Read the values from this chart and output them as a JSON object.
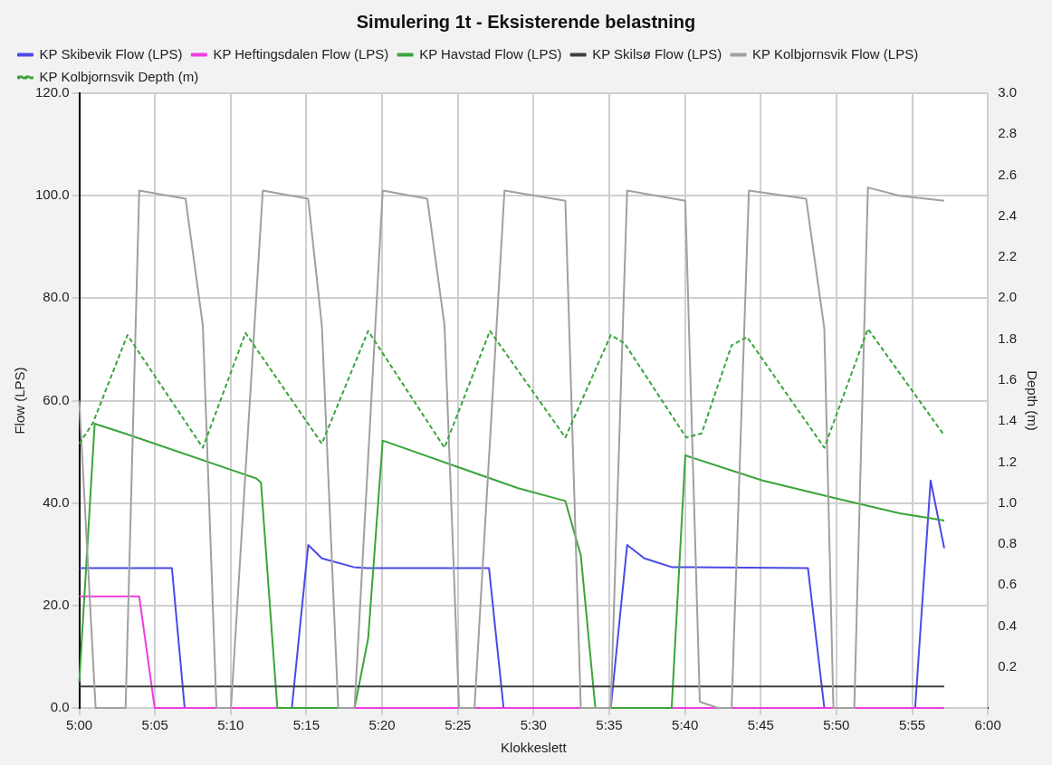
{
  "chart_data": {
    "type": "line",
    "title": "Simulering 1t - Eksisterende belastning",
    "xlabel": "Klokkeslett",
    "ylabel": "Flow (LPS)",
    "y2label": "Depth (m)",
    "xlim": [
      5,
      6
    ],
    "xticks": [
      {
        "value": 5,
        "label": "5:00"
      },
      {
        "value": 5.0833,
        "label": "5:05"
      },
      {
        "value": 5.1667,
        "label": "5:10"
      },
      {
        "value": 5.25,
        "label": "5:15"
      },
      {
        "value": 5.3333,
        "label": "5:20"
      },
      {
        "value": 5.4167,
        "label": "5:25"
      },
      {
        "value": 5.5,
        "label": "5:30"
      },
      {
        "value": 5.5833,
        "label": "5:35"
      },
      {
        "value": 5.6667,
        "label": "5:40"
      },
      {
        "value": 5.75,
        "label": "5:45"
      },
      {
        "value": 5.8333,
        "label": "5:50"
      },
      {
        "value": 5.9167,
        "label": "5:55"
      },
      {
        "value": 6,
        "label": "6:00"
      }
    ],
    "ylim": [
      0,
      120
    ],
    "yticks": [
      {
        "value": 0,
        "label": "0.0"
      },
      {
        "value": 20,
        "label": "20.0"
      },
      {
        "value": 40,
        "label": "40.0"
      },
      {
        "value": 60,
        "label": "60.0"
      },
      {
        "value": 80,
        "label": "80.0"
      },
      {
        "value": 100,
        "label": "100.0"
      },
      {
        "value": 120,
        "label": "120.0"
      }
    ],
    "y2lim": [
      0,
      3
    ],
    "y2ticks": [
      0.2,
      0.4,
      0.6,
      0.8,
      {
        "value": 1,
        "label": "1.0"
      },
      1.2,
      1.4,
      1.6,
      1.8,
      {
        "value": 2,
        "label": "2.0"
      },
      2.2,
      2.4,
      2.6,
      2.8,
      {
        "value": 3,
        "label": "3.0"
      }
    ],
    "grid": true,
    "legend": "top left",
    "marker": "none",
    "series": [
      {
        "name": "KP Skibevik Flow (LPS)",
        "color": "#4a4ae8",
        "x": [
          5,
          5.102,
          5.116,
          5.234,
          5.252,
          5.267,
          5.302,
          5.317,
          5.451,
          5.467,
          5.585,
          5.603,
          5.622,
          5.652,
          5.802,
          5.82,
          5.92,
          5.937,
          5.952
        ],
        "values": [
          27.3,
          27.3,
          0,
          0,
          31.8,
          29.2,
          27.5,
          27.3,
          27.3,
          0,
          0,
          31.8,
          29.2,
          27.5,
          27.3,
          0,
          0,
          44.4,
          31.2
        ]
      },
      {
        "name": "KP Heftingsdalen Flow (LPS)",
        "color": "#f03ce0",
        "x": [
          5,
          5.066,
          5.083,
          5.952
        ],
        "values": [
          21.8,
          21.8,
          0,
          0
        ]
      },
      {
        "name": "KP Havstad Flow (LPS)",
        "color": "#3aa53a",
        "x": [
          5,
          5.017,
          5.05,
          5.195,
          5.2,
          5.218,
          5.303,
          5.318,
          5.334,
          5.483,
          5.535,
          5.552,
          5.568,
          5.652,
          5.667,
          5.752,
          5.833,
          5.903,
          5.952
        ],
        "values": [
          5,
          55.5,
          53.6,
          44.8,
          44,
          0,
          0,
          13.6,
          52.2,
          42.9,
          40.4,
          29.8,
          0,
          0,
          49.3,
          44.4,
          40.9,
          38,
          36.6
        ]
      },
      {
        "name": "KP Skilsø Flow (LPS)",
        "color": "#404040",
        "x": [
          5,
          5.952
        ],
        "values": [
          4.2,
          4.2
        ]
      },
      {
        "name": "KP Kolbjornsvik Flow (LPS)",
        "color": "#a0a0a0",
        "x": [
          5,
          5.018,
          5.051,
          5.066,
          5.117,
          5.136,
          5.151,
          5.167,
          5.202,
          5.252,
          5.267,
          5.285,
          5.303,
          5.334,
          5.383,
          5.402,
          5.418,
          5.435,
          5.468,
          5.535,
          5.552,
          5.585,
          5.603,
          5.667,
          5.683,
          5.703,
          5.718,
          5.737,
          5.8,
          5.82,
          5.83,
          5.853,
          5.868,
          5.903,
          5.952
        ],
        "values": [
          60,
          0,
          0,
          101,
          99.4,
          74.7,
          0,
          0,
          101,
          99.4,
          74.7,
          0,
          0,
          101,
          99.4,
          74.7,
          0,
          0,
          101,
          99,
          0,
          0,
          101,
          99,
          1.2,
          0,
          0,
          101,
          99.4,
          74.1,
          0,
          0,
          101.6,
          100,
          99
        ]
      },
      {
        "name": "KP Kolbjornsvik Depth (m)",
        "color": "#3aa53a",
        "axis": "y2",
        "line_style": "dashed",
        "x": [
          5,
          5.015,
          5.053,
          5.136,
          5.183,
          5.267,
          5.318,
          5.402,
          5.452,
          5.535,
          5.585,
          5.6,
          5.668,
          5.685,
          5.718,
          5.735,
          5.82,
          5.868,
          5.952
        ],
        "values": [
          1.29,
          1.39,
          1.82,
          1.27,
          1.83,
          1.29,
          1.84,
          1.27,
          1.84,
          1.32,
          1.82,
          1.78,
          1.32,
          1.34,
          1.77,
          1.81,
          1.27,
          1.85,
          1.33
        ]
      }
    ]
  }
}
